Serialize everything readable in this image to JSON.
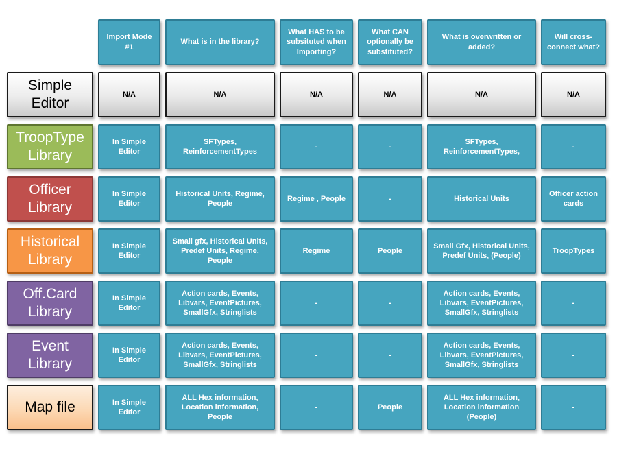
{
  "table": {
    "columns": [
      "Import Mode #1",
      "What is in the library?",
      "What HAS to be subsituted when Importing?",
      "What CAN optionally be substituted?",
      "What is overwritten or added?",
      "Will cross-connect what?"
    ],
    "rows": [
      {
        "label": "Simple Editor",
        "cells": [
          "N/A",
          "N/A",
          "N/A",
          "N/A",
          "N/A",
          "N/A"
        ]
      },
      {
        "label": "TroopType Library",
        "cells": [
          "In Simple Editor",
          "SFTypes, ReinforcementTypes",
          "-",
          "-",
          "SFTypes, ReinforcementTypes,",
          "-"
        ]
      },
      {
        "label": "Officer Library",
        "cells": [
          "In Simple Editor",
          "Historical Units, Regime, People",
          "Regime , People",
          "-",
          "Historical Units",
          "Officer action cards"
        ]
      },
      {
        "label": "Historical Library",
        "cells": [
          "In Simple Editor",
          "Small gfx, Historical Units, Predef Units, Regime, People",
          "Regime",
          "People",
          "Small Gfx, Historical Units, Predef Units, (People)",
          "TroopTypes"
        ]
      },
      {
        "label": "Off.Card Library",
        "cells": [
          "In Simple Editor",
          "Action cards, Events, Libvars, EventPictures, SmallGfx, Stringlists",
          "-",
          "-",
          "Action cards, Events, Libvars, EventPictures, SmallGfx, Stringlists",
          "-"
        ]
      },
      {
        "label": "Event Library",
        "cells": [
          "In Simple Editor",
          "Action cards, Events, Libvars, EventPictures, SmallGfx, Stringlists",
          "-",
          "-",
          "Action cards, Events, Libvars, EventPictures, SmallGfx, Stringlists",
          "-"
        ]
      },
      {
        "label": "Map file",
        "cells": [
          "In Simple Editor",
          "ALL Hex information, Location information, People",
          "-",
          "People",
          "ALL Hex information, Location information (People)",
          "-"
        ]
      }
    ],
    "colors": {
      "teal_fill": "#46a5bf",
      "teal_border": "#2e7d95",
      "green_fill": "#9bbb59",
      "red_fill": "#c0504d",
      "orange_fill": "#f79646",
      "purple_fill": "#8064a2",
      "gray_fill_bottom": "#c9c9c9",
      "peach_fill_bottom": "#fac08c",
      "label_border_dark": "#1a1a1a",
      "cell_text": "#ffffff"
    }
  }
}
